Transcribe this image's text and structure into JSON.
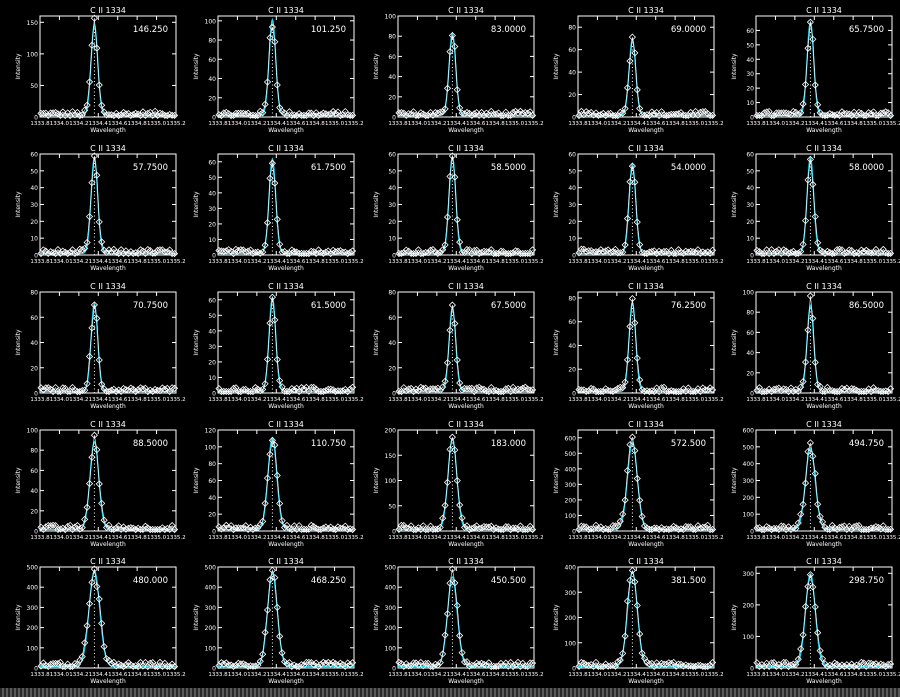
{
  "figure": {
    "background": "#000000",
    "axis_color": "#ffffff",
    "fit_color": "#22d3ee",
    "marker_color": "#ffffff"
  },
  "chart_data": [
    {
      "type": "line",
      "title": "C II 1334",
      "xlabel": "Wavelength",
      "ylabel": "Intensity",
      "xlim": [
        1333.8,
        1335.2
      ],
      "ylim": [
        0,
        160
      ],
      "yticks": [
        0,
        50,
        100,
        150
      ],
      "xticks": [
        1333.8,
        1334.0,
        1334.2,
        1334.4,
        1334.6,
        1334.8,
        1335.0,
        1335.2
      ],
      "peak_label": "146.250",
      "peak": 146.25,
      "center": 1334.36,
      "sigma": 0.034
    },
    {
      "type": "line",
      "title": "C II 1334",
      "xlabel": "Wavelength",
      "ylabel": "Intensity",
      "xlim": [
        1333.8,
        1335.2
      ],
      "ylim": [
        0,
        105
      ],
      "yticks": [
        0,
        20,
        40,
        60,
        80,
        100
      ],
      "xticks": [
        1333.8,
        1334.0,
        1334.2,
        1334.4,
        1334.6,
        1334.8,
        1335.0,
        1335.2
      ],
      "peak_label": "101.250",
      "peak": 101.25,
      "center": 1334.36,
      "sigma": 0.034
    },
    {
      "type": "line",
      "title": "C II 1334",
      "xlabel": "Wavelength",
      "ylabel": "Intensity",
      "xlim": [
        1333.8,
        1335.2
      ],
      "ylim": [
        0,
        100
      ],
      "yticks": [
        0,
        20,
        40,
        60,
        80,
        100
      ],
      "xticks": [
        1333.8,
        1334.0,
        1334.2,
        1334.4,
        1334.6,
        1334.8,
        1335.0,
        1335.2
      ],
      "peak_label": "83.0000",
      "peak": 83.0,
      "center": 1334.36,
      "sigma": 0.034
    },
    {
      "type": "line",
      "title": "C II 1334",
      "xlabel": "Wavelength",
      "ylabel": "Intensity",
      "xlim": [
        1333.8,
        1335.2
      ],
      "ylim": [
        0,
        90
      ],
      "yticks": [
        0,
        20,
        40,
        60,
        80
      ],
      "xticks": [
        1333.8,
        1334.0,
        1334.2,
        1334.4,
        1334.6,
        1334.8,
        1335.0,
        1335.2
      ],
      "peak_label": "69.0000",
      "peak": 69.0,
      "center": 1334.36,
      "sigma": 0.034
    },
    {
      "type": "line",
      "title": "C II 1334",
      "xlabel": "Wavelength",
      "ylabel": "Intensity",
      "xlim": [
        1333.8,
        1335.2
      ],
      "ylim": [
        0,
        70
      ],
      "yticks": [
        0,
        10,
        20,
        30,
        40,
        50,
        60
      ],
      "xticks": [
        1333.8,
        1334.0,
        1334.2,
        1334.4,
        1334.6,
        1334.8,
        1335.0,
        1335.2
      ],
      "peak_label": "65.7500",
      "peak": 65.75,
      "center": 1334.36,
      "sigma": 0.034
    },
    {
      "type": "line",
      "title": "C II 1334",
      "xlabel": "Wavelength",
      "ylabel": "Intensity",
      "xlim": [
        1333.8,
        1335.2
      ],
      "ylim": [
        0,
        60
      ],
      "yticks": [
        0,
        10,
        20,
        30,
        40,
        50,
        60
      ],
      "xticks": [
        1333.8,
        1334.0,
        1334.2,
        1334.4,
        1334.6,
        1334.8,
        1335.0,
        1335.2
      ],
      "peak_label": "57.7500",
      "peak": 57.75,
      "center": 1334.36,
      "sigma": 0.034
    },
    {
      "type": "line",
      "title": "C II 1334",
      "xlabel": "Wavelength",
      "ylabel": "Intensity",
      "xlim": [
        1333.8,
        1335.2
      ],
      "ylim": [
        0,
        65
      ],
      "yticks": [
        0,
        10,
        20,
        30,
        40,
        50,
        60
      ],
      "xticks": [
        1333.8,
        1334.0,
        1334.2,
        1334.4,
        1334.6,
        1334.8,
        1335.0,
        1335.2
      ],
      "peak_label": "61.7500",
      "peak": 61.75,
      "center": 1334.36,
      "sigma": 0.034
    },
    {
      "type": "line",
      "title": "C II 1334",
      "xlabel": "Wavelength",
      "ylabel": "Intensity",
      "xlim": [
        1333.8,
        1335.2
      ],
      "ylim": [
        0,
        60
      ],
      "yticks": [
        0,
        10,
        20,
        30,
        40,
        50,
        60
      ],
      "xticks": [
        1333.8,
        1334.0,
        1334.2,
        1334.4,
        1334.6,
        1334.8,
        1335.0,
        1335.2
      ],
      "peak_label": "58.5000",
      "peak": 58.5,
      "center": 1334.36,
      "sigma": 0.034
    },
    {
      "type": "line",
      "title": "C II 1334",
      "xlabel": "Wavelength",
      "ylabel": "Intensity",
      "xlim": [
        1333.8,
        1335.2
      ],
      "ylim": [
        0,
        60
      ],
      "yticks": [
        0,
        10,
        20,
        30,
        40,
        50,
        60
      ],
      "xticks": [
        1333.8,
        1334.0,
        1334.2,
        1334.4,
        1334.6,
        1334.8,
        1335.0,
        1335.2
      ],
      "peak_label": "54.0000",
      "peak": 54.0,
      "center": 1334.36,
      "sigma": 0.034
    },
    {
      "type": "line",
      "title": "C II 1334",
      "xlabel": "Wavelength",
      "ylabel": "Intensity",
      "xlim": [
        1333.8,
        1335.2
      ],
      "ylim": [
        0,
        60
      ],
      "yticks": [
        0,
        10,
        20,
        30,
        40,
        50,
        60
      ],
      "xticks": [
        1333.8,
        1334.0,
        1334.2,
        1334.4,
        1334.6,
        1334.8,
        1335.0,
        1335.2
      ],
      "peak_label": "58.0000",
      "peak": 58.0,
      "center": 1334.36,
      "sigma": 0.034
    },
    {
      "type": "line",
      "title": "C II 1334",
      "xlabel": "Wavelength",
      "ylabel": "Intensity",
      "xlim": [
        1333.8,
        1335.2
      ],
      "ylim": [
        0,
        80
      ],
      "yticks": [
        0,
        20,
        40,
        60,
        80
      ],
      "xticks": [
        1333.8,
        1334.0,
        1334.2,
        1334.4,
        1334.6,
        1334.8,
        1335.0,
        1335.2
      ],
      "peak_label": "70.7500",
      "peak": 70.75,
      "center": 1334.36,
      "sigma": 0.034
    },
    {
      "type": "line",
      "title": "C II 1334",
      "xlabel": "Wavelength",
      "ylabel": "Intensity",
      "xlim": [
        1333.8,
        1335.2
      ],
      "ylim": [
        0,
        65
      ],
      "yticks": [
        0,
        10,
        20,
        30,
        40,
        50,
        60
      ],
      "xticks": [
        1333.8,
        1334.0,
        1334.2,
        1334.4,
        1334.6,
        1334.8,
        1335.0,
        1335.2
      ],
      "peak_label": "61.5000",
      "peak": 61.5,
      "center": 1334.36,
      "sigma": 0.034
    },
    {
      "type": "line",
      "title": "C II 1334",
      "xlabel": "Wavelength",
      "ylabel": "Intensity",
      "xlim": [
        1333.8,
        1335.2
      ],
      "ylim": [
        0,
        80
      ],
      "yticks": [
        0,
        20,
        40,
        60,
        80
      ],
      "xticks": [
        1333.8,
        1334.0,
        1334.2,
        1334.4,
        1334.6,
        1334.8,
        1335.0,
        1335.2
      ],
      "peak_label": "67.5000",
      "peak": 67.5,
      "center": 1334.36,
      "sigma": 0.034
    },
    {
      "type": "line",
      "title": "C II 1334",
      "xlabel": "Wavelength",
      "ylabel": "Intensity",
      "xlim": [
        1333.8,
        1335.2
      ],
      "ylim": [
        0,
        85
      ],
      "yticks": [
        0,
        20,
        40,
        60,
        80
      ],
      "xticks": [
        1333.8,
        1334.0,
        1334.2,
        1334.4,
        1334.6,
        1334.8,
        1335.0,
        1335.2
      ],
      "peak_label": "76.2500",
      "peak": 76.25,
      "center": 1334.36,
      "sigma": 0.034
    },
    {
      "type": "line",
      "title": "C II 1334",
      "xlabel": "Wavelength",
      "ylabel": "Intensity",
      "xlim": [
        1333.8,
        1335.2
      ],
      "ylim": [
        0,
        100
      ],
      "yticks": [
        0,
        20,
        40,
        60,
        80,
        100
      ],
      "xticks": [
        1333.8,
        1334.0,
        1334.2,
        1334.4,
        1334.6,
        1334.8,
        1335.0,
        1335.2
      ],
      "peak_label": "86.5000",
      "peak": 86.5,
      "center": 1334.36,
      "sigma": 0.034
    },
    {
      "type": "line",
      "title": "C II 1334",
      "xlabel": "Wavelength",
      "ylabel": "Intensity",
      "xlim": [
        1333.8,
        1335.2
      ],
      "ylim": [
        0,
        100
      ],
      "yticks": [
        0,
        20,
        40,
        60,
        80,
        100
      ],
      "xticks": [
        1333.8,
        1334.0,
        1334.2,
        1334.4,
        1334.6,
        1334.8,
        1335.0,
        1335.2
      ],
      "peak_label": "88.5000",
      "peak": 88.5,
      "center": 1334.36,
      "sigma": 0.045
    },
    {
      "type": "line",
      "title": "C II 1334",
      "xlabel": "Wavelength",
      "ylabel": "Intensity",
      "xlim": [
        1333.8,
        1335.2
      ],
      "ylim": [
        0,
        120
      ],
      "yticks": [
        0,
        20,
        40,
        60,
        80,
        100,
        120
      ],
      "xticks": [
        1333.8,
        1334.0,
        1334.2,
        1334.4,
        1334.6,
        1334.8,
        1335.0,
        1335.2
      ],
      "peak_label": "110.750",
      "peak": 110.75,
      "center": 1334.36,
      "sigma": 0.045
    },
    {
      "type": "line",
      "title": "C II 1334",
      "xlabel": "Wavelength",
      "ylabel": "Intensity",
      "xlim": [
        1333.8,
        1335.2
      ],
      "ylim": [
        0,
        200
      ],
      "yticks": [
        0,
        50,
        100,
        150,
        200
      ],
      "xticks": [
        1333.8,
        1334.0,
        1334.2,
        1334.4,
        1334.6,
        1334.8,
        1335.0,
        1335.2
      ],
      "peak_label": "183.000",
      "peak": 183.0,
      "center": 1334.36,
      "sigma": 0.045
    },
    {
      "type": "line",
      "title": "C II 1334",
      "xlabel": "Wavelength",
      "ylabel": "Intensity",
      "xlim": [
        1333.8,
        1335.2
      ],
      "ylim": [
        0,
        650
      ],
      "yticks": [
        0,
        100,
        200,
        300,
        400,
        500,
        600
      ],
      "xticks": [
        1333.8,
        1334.0,
        1334.2,
        1334.4,
        1334.6,
        1334.8,
        1335.0,
        1335.2
      ],
      "peak_label": "572.500",
      "peak": 572.5,
      "center": 1334.36,
      "sigma": 0.05
    },
    {
      "type": "line",
      "title": "C II 1334",
      "xlabel": "Wavelength",
      "ylabel": "Intensity",
      "xlim": [
        1333.8,
        1335.2
      ],
      "ylim": [
        0,
        600
      ],
      "yticks": [
        0,
        100,
        200,
        300,
        400,
        500,
        600
      ],
      "xticks": [
        1333.8,
        1334.0,
        1334.2,
        1334.4,
        1334.6,
        1334.8,
        1335.0,
        1335.2
      ],
      "peak_label": "494.750",
      "peak": 494.75,
      "center": 1334.36,
      "sigma": 0.05
    },
    {
      "type": "line",
      "title": "C II 1334",
      "xlabel": "Wavelength",
      "ylabel": "Intensity",
      "xlim": [
        1333.8,
        1335.2
      ],
      "ylim": [
        0,
        500
      ],
      "yticks": [
        0,
        100,
        200,
        300,
        400,
        500
      ],
      "xticks": [
        1333.8,
        1334.0,
        1334.2,
        1334.4,
        1334.6,
        1334.8,
        1335.0,
        1335.2
      ],
      "peak_label": "480.000",
      "peak": 480.0,
      "center": 1334.36,
      "sigma": 0.055
    },
    {
      "type": "line",
      "title": "C II 1334",
      "xlabel": "Wavelength",
      "ylabel": "Intensity",
      "xlim": [
        1333.8,
        1335.2
      ],
      "ylim": [
        0,
        500
      ],
      "yticks": [
        0,
        100,
        200,
        300,
        400,
        500
      ],
      "xticks": [
        1333.8,
        1334.0,
        1334.2,
        1334.4,
        1334.6,
        1334.8,
        1335.0,
        1335.2
      ],
      "peak_label": "468.250",
      "peak": 468.25,
      "center": 1334.36,
      "sigma": 0.05
    },
    {
      "type": "line",
      "title": "C II 1334",
      "xlabel": "Wavelength",
      "ylabel": "Intensity",
      "xlim": [
        1333.8,
        1335.2
      ],
      "ylim": [
        0,
        500
      ],
      "yticks": [
        0,
        100,
        200,
        300,
        400,
        500
      ],
      "xticks": [
        1333.8,
        1334.0,
        1334.2,
        1334.4,
        1334.6,
        1334.8,
        1335.0,
        1335.2
      ],
      "peak_label": "450.500",
      "peak": 450.5,
      "center": 1334.36,
      "sigma": 0.05
    },
    {
      "type": "line",
      "title": "C II 1334",
      "xlabel": "Wavelength",
      "ylabel": "Intensity",
      "xlim": [
        1333.8,
        1335.2
      ],
      "ylim": [
        0,
        400
      ],
      "yticks": [
        0,
        100,
        200,
        300,
        400
      ],
      "xticks": [
        1333.8,
        1334.0,
        1334.2,
        1334.4,
        1334.6,
        1334.8,
        1335.0,
        1335.2
      ],
      "peak_label": "381.500",
      "peak": 381.5,
      "center": 1334.36,
      "sigma": 0.05
    },
    {
      "type": "line",
      "title": "C II 1334",
      "xlabel": "Wavelength",
      "ylabel": "Intensity",
      "xlim": [
        1333.8,
        1335.2
      ],
      "ylim": [
        0,
        320
      ],
      "yticks": [
        0,
        100,
        200,
        300
      ],
      "xticks": [
        1333.8,
        1334.0,
        1334.2,
        1334.4,
        1334.6,
        1334.8,
        1335.0,
        1335.2
      ],
      "peak_label": "298.750",
      "peak": 298.75,
      "center": 1334.36,
      "sigma": 0.05
    }
  ]
}
